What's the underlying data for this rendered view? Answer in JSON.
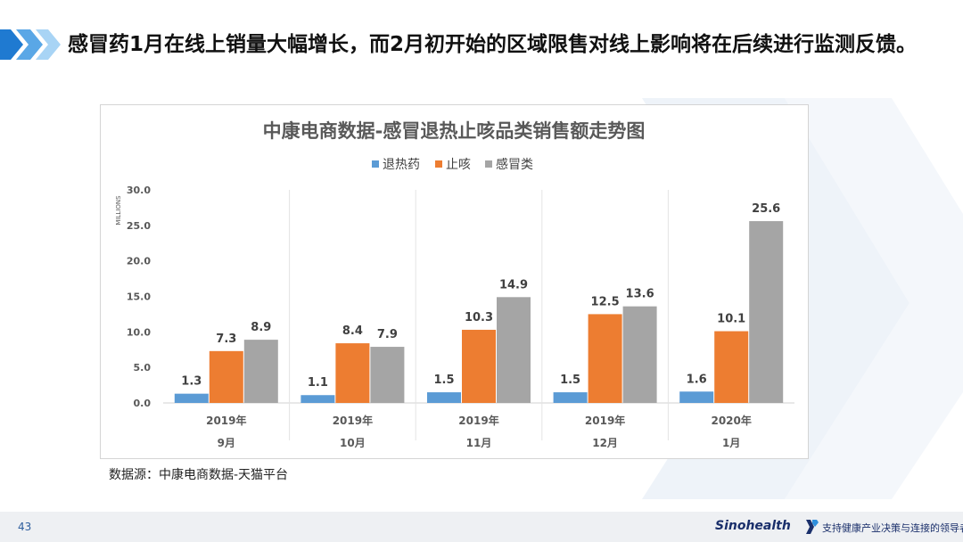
{
  "slide": {
    "title": "感冒药1月在线上销量大幅增长，而2月初开始的区域限售对线上影响将在后续进行监测反馈。",
    "source": "数据源：中康电商数据-天猫平台",
    "page_number": "43",
    "brand_name": "Sinohealth",
    "brand_slogan": "支持健康产业决策与连接的领导者"
  },
  "colors": {
    "accent_dark": "#1f7ad1",
    "accent_light": "#9fd0f3",
    "series": [
      "#5b9bd5",
      "#ed7d31",
      "#a5a5a5"
    ]
  },
  "chart_data": {
    "type": "bar",
    "title": "中康电商数据-感冒退热止咳品类销售额走势图",
    "ylabel": "MILLIONS",
    "xlabel": "",
    "ylim": [
      0,
      30
    ],
    "yticks": [
      0,
      5,
      10,
      15,
      20,
      25,
      30
    ],
    "ytick_labels": [
      "0.0",
      "5.0",
      "10.0",
      "15.0",
      "20.0",
      "25.0",
      "30.0"
    ],
    "categories": [
      {
        "year": "2019年",
        "month": "9月"
      },
      {
        "year": "2019年",
        "month": "10月"
      },
      {
        "year": "2019年",
        "month": "11月"
      },
      {
        "year": "2019年",
        "month": "12月"
      },
      {
        "year": "2020年",
        "month": "1月"
      }
    ],
    "series": [
      {
        "name": "退热药",
        "values": [
          1.3,
          1.1,
          1.5,
          1.5,
          1.6
        ]
      },
      {
        "name": "止咳",
        "values": [
          7.3,
          8.4,
          10.3,
          12.5,
          10.1
        ]
      },
      {
        "name": "感冒类",
        "values": [
          8.9,
          7.9,
          14.9,
          13.6,
          25.6
        ]
      }
    ],
    "legend_position": "top",
    "grid": false
  }
}
